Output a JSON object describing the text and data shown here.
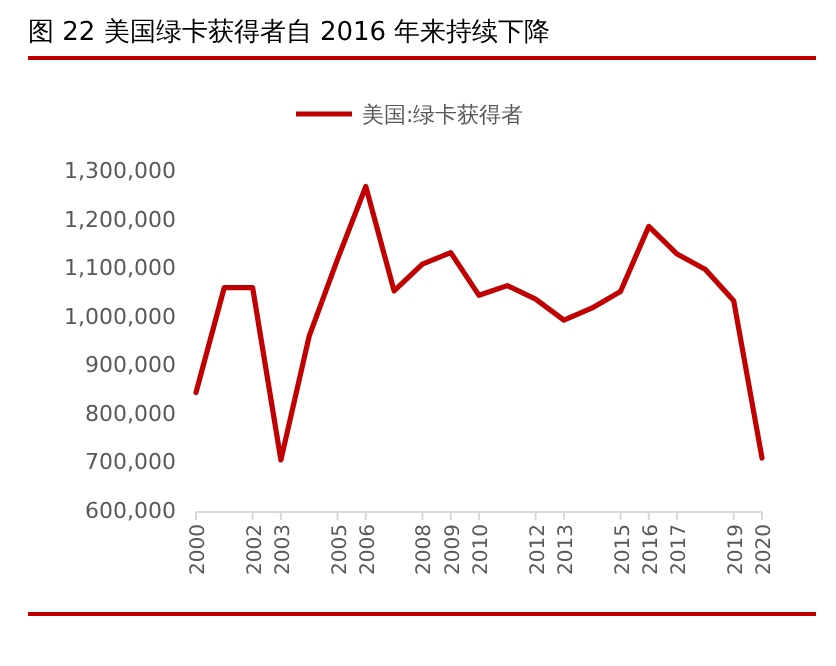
{
  "chart_data": {
    "type": "line",
    "title": "图 22 美国绿卡获得者自 2016 年来持续下降",
    "x": [
      2000,
      2001,
      2002,
      2003,
      2004,
      2005,
      2006,
      2007,
      2008,
      2009,
      2010,
      2011,
      2012,
      2013,
      2014,
      2015,
      2016,
      2017,
      2018,
      2019,
      2020
    ],
    "series": [
      {
        "name": "美国:绿卡获得者",
        "color": "#c00000",
        "values": [
          842000,
          1058000,
          1058000,
          703000,
          958000,
          1116000,
          1266000,
          1051000,
          1106000,
          1130000,
          1042000,
          1062000,
          1034000,
          991000,
          1016000,
          1050000,
          1184000,
          1127000,
          1095000,
          1031000,
          707000
        ]
      }
    ],
    "xlim": [
      2000,
      2020
    ],
    "xticks": [
      2000,
      2002,
      2003,
      2005,
      2006,
      2008,
      2009,
      2010,
      2012,
      2013,
      2015,
      2016,
      2017,
      2019,
      2020
    ],
    "ylim": [
      600000,
      1300000
    ],
    "yticks": [
      {
        "value": 600000,
        "label": "600,000"
      },
      {
        "value": 700000,
        "label": "700,000"
      },
      {
        "value": 800000,
        "label": "800,000"
      },
      {
        "value": 900000,
        "label": "900,000"
      },
      {
        "value": 1000000,
        "label": "1,000,000"
      },
      {
        "value": 1100000,
        "label": "1,100,000"
      },
      {
        "value": 1200000,
        "label": "1,200,000"
      },
      {
        "value": 1300000,
        "label": "1,300,000"
      }
    ],
    "grid": false,
    "legend": "top",
    "marker": "none",
    "line_style": "solid"
  }
}
